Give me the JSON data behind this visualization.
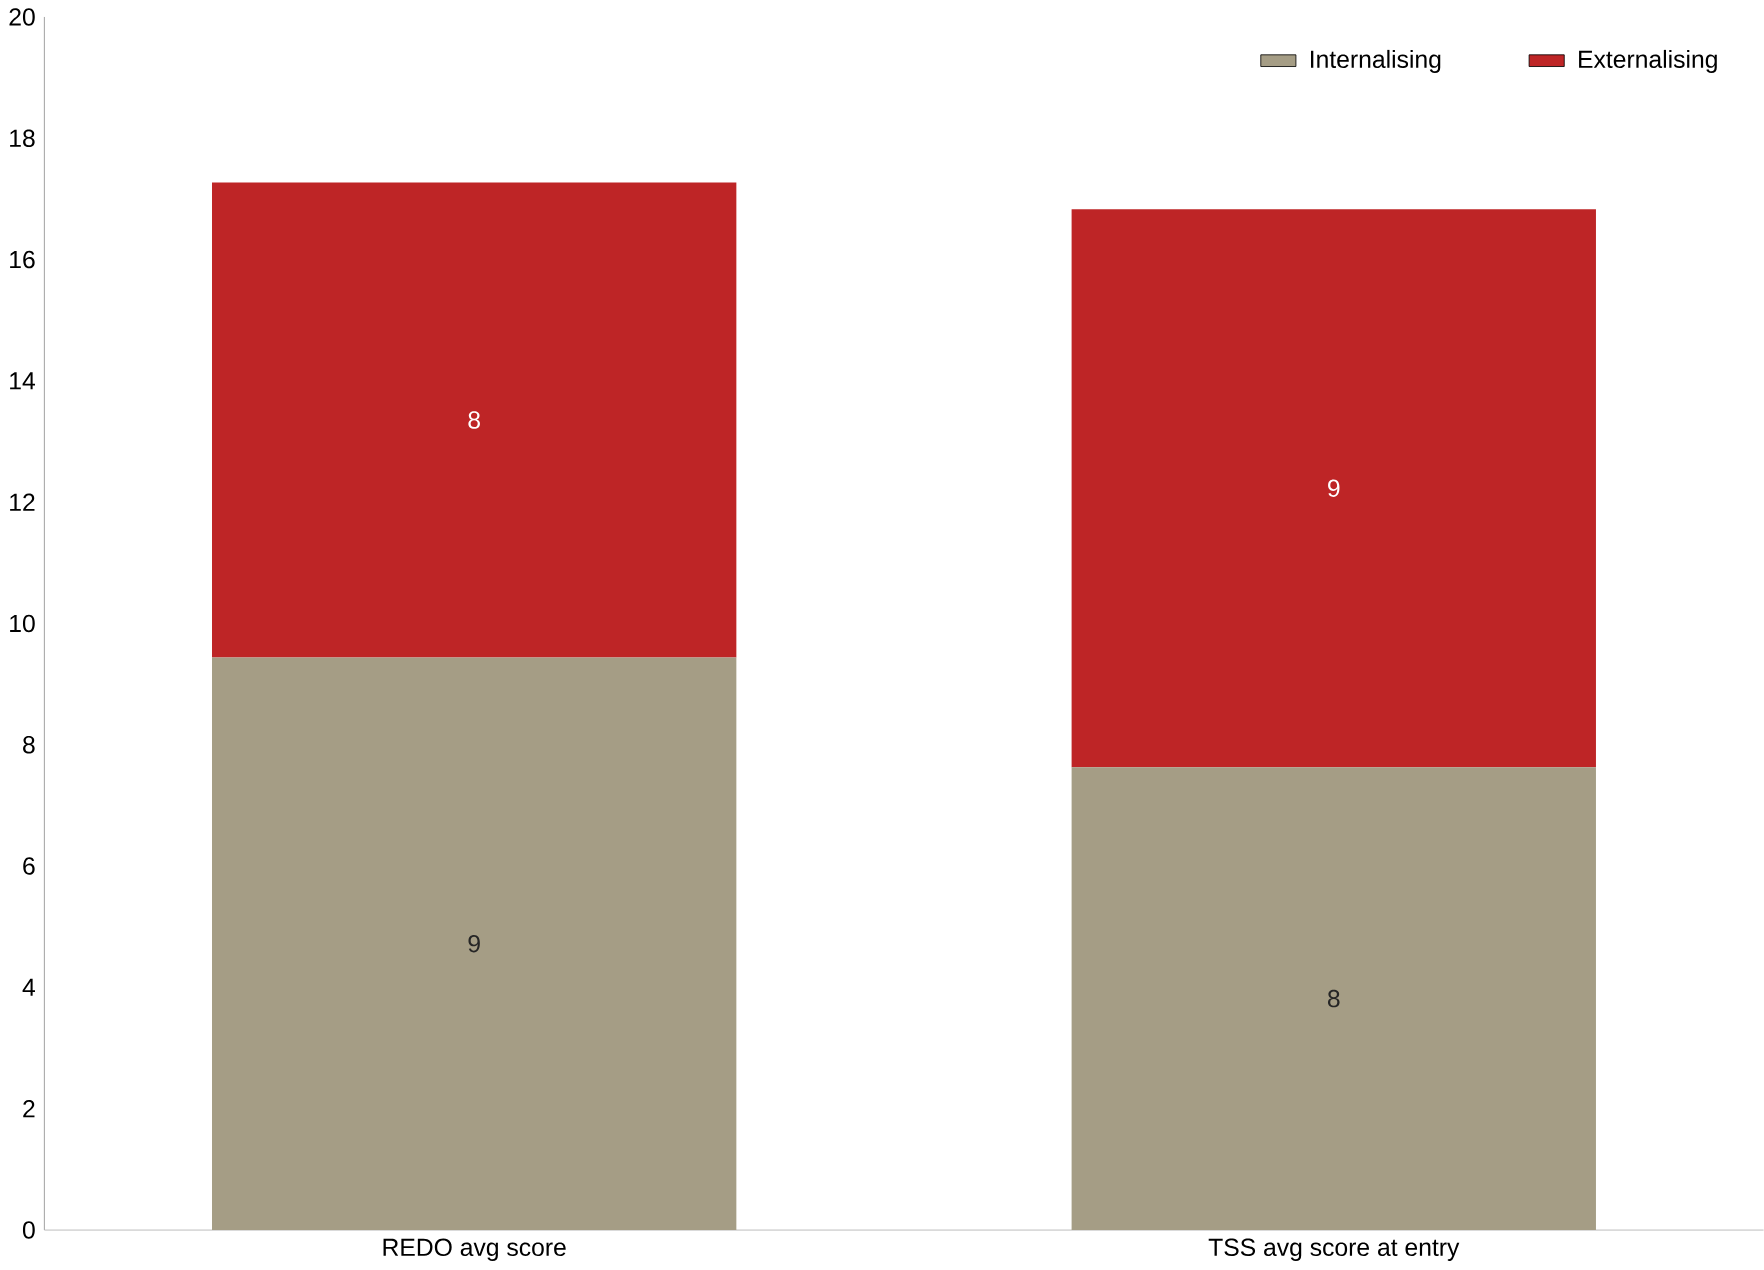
{
  "chart_data": {
    "type": "bar",
    "stacked": true,
    "categories": [
      "REDO avg score",
      "TSS avg score at entry"
    ],
    "series": [
      {
        "name": "Internalising",
        "color": "#a59d85",
        "values": [
          9.44,
          7.63
        ],
        "value_labels": [
          "9",
          "8"
        ]
      },
      {
        "name": "Externalising",
        "color": "#be2526",
        "values": [
          7.83,
          9.2
        ],
        "value_labels": [
          "8",
          "9"
        ]
      }
    ],
    "ylim": [
      0,
      20
    ],
    "yticks": [
      0,
      2,
      4,
      6,
      8,
      10,
      12,
      14,
      16,
      18,
      20
    ],
    "grid": false,
    "legend": "top right"
  }
}
